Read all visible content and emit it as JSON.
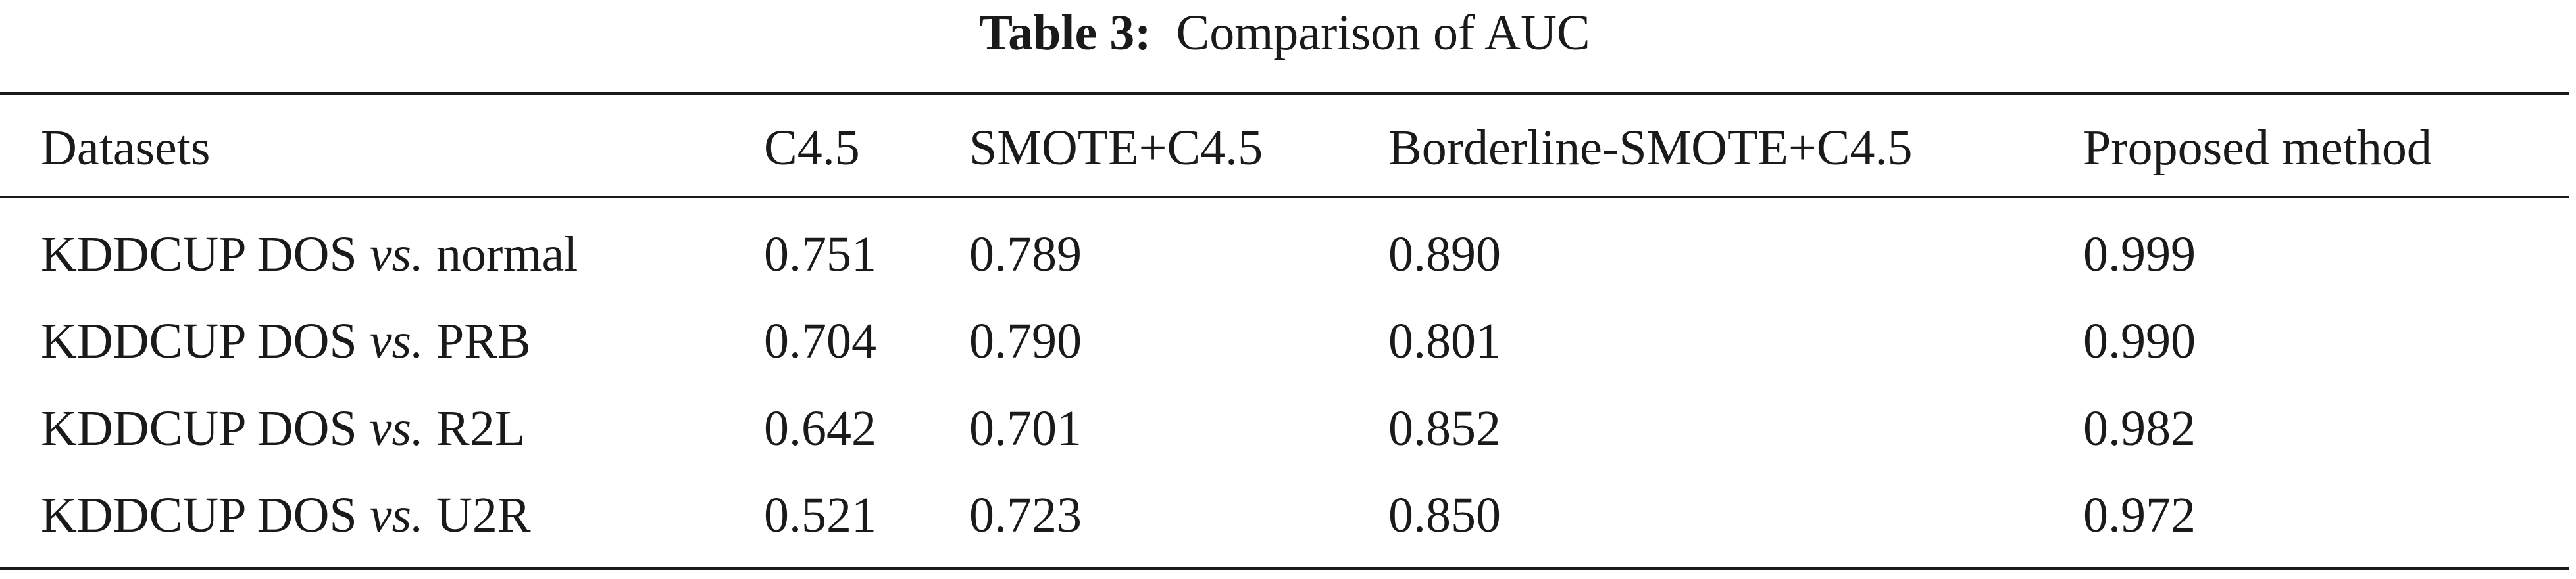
{
  "caption": {
    "label": "Table 3:",
    "title": "Comparison of AUC"
  },
  "table": {
    "columns": [
      "Datasets",
      "C4.5",
      "SMOTE+C4.5",
      "Borderline-SMOTE+C4.5",
      "Proposed method"
    ],
    "rows": [
      [
        {
          "prefix": "KDDCUP DOS",
          "italic": "vs.",
          "suffix": "normal"
        },
        "0.751",
        "0.789",
        "0.890",
        "0.999"
      ],
      [
        {
          "prefix": "KDDCUP DOS",
          "italic": "vs.",
          "suffix": "PRB"
        },
        "0.704",
        "0.790",
        "0.801",
        "0.990"
      ],
      [
        {
          "prefix": "KDDCUP DOS",
          "italic": "vs.",
          "suffix": "R2L"
        },
        "0.642",
        "0.701",
        "0.852",
        "0.982"
      ],
      [
        {
          "prefix": "KDDCUP DOS",
          "italic": "vs.",
          "suffix": "U2R"
        },
        "0.521",
        "0.723",
        "0.850",
        "0.972"
      ]
    ]
  }
}
